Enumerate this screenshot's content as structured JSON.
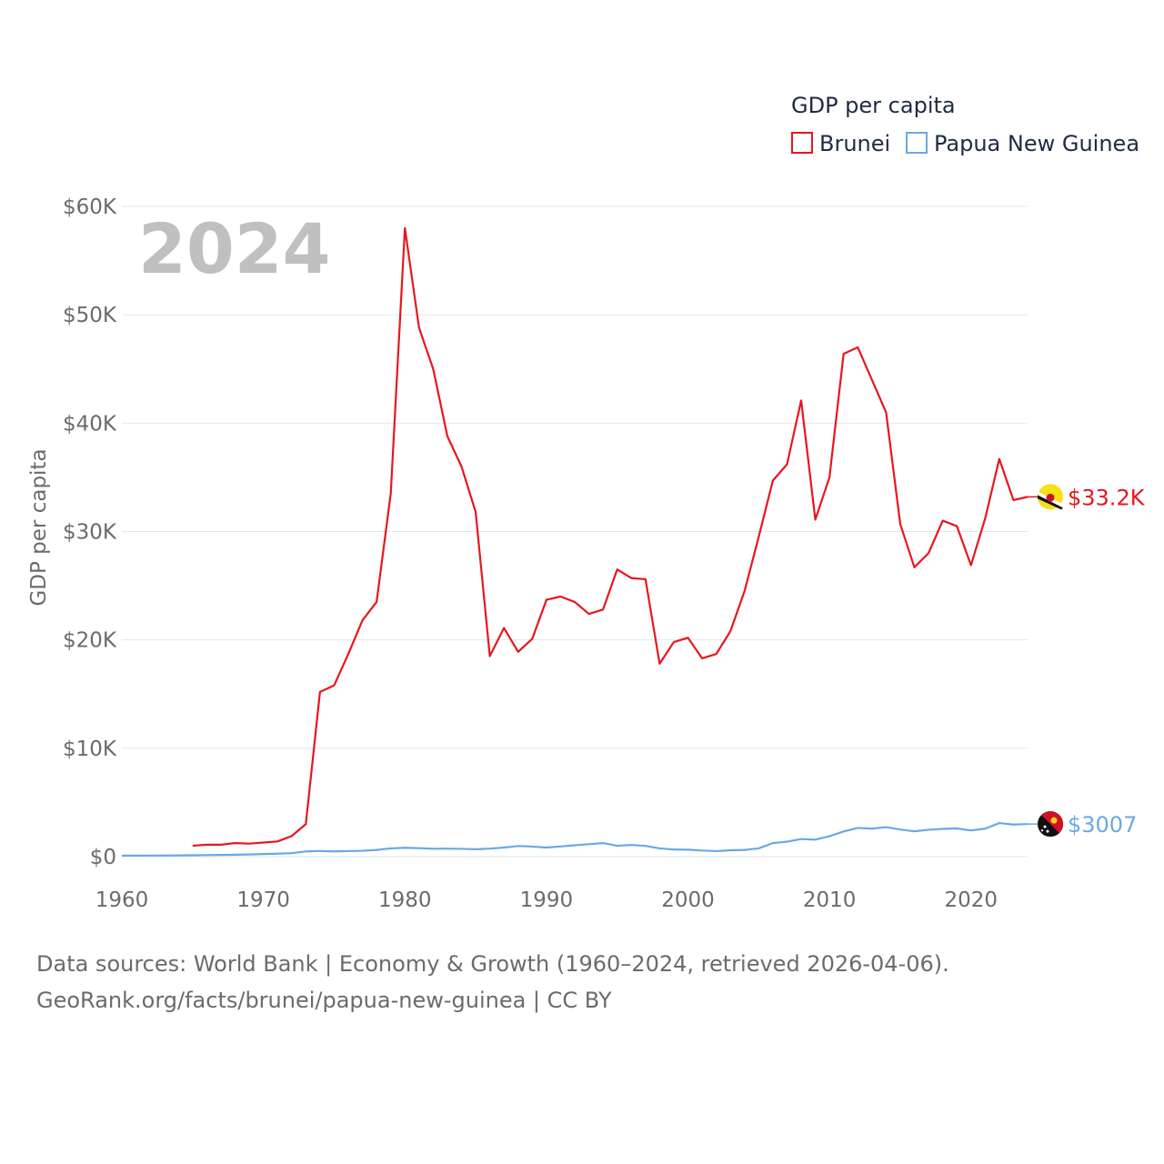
{
  "chart_data": {
    "type": "line",
    "year_label": "2024",
    "ylabel": "GDP per capita",
    "xlabel": "",
    "xlim": [
      1960,
      2024
    ],
    "ylim": [
      0,
      60000
    ],
    "y_ticks": [
      {
        "value": 0,
        "label": "$0"
      },
      {
        "value": 10000,
        "label": "$10K"
      },
      {
        "value": 20000,
        "label": "$20K"
      },
      {
        "value": 30000,
        "label": "$30K"
      },
      {
        "value": 40000,
        "label": "$40K"
      },
      {
        "value": 50000,
        "label": "$50K"
      },
      {
        "value": 60000,
        "label": "$60K"
      }
    ],
    "x_ticks": [
      {
        "value": 1960,
        "label": "1960"
      },
      {
        "value": 1970,
        "label": "1970"
      },
      {
        "value": 1980,
        "label": "1980"
      },
      {
        "value": 1990,
        "label": "1990"
      },
      {
        "value": 2000,
        "label": "2000"
      },
      {
        "value": 2010,
        "label": "2010"
      },
      {
        "value": 2020,
        "label": "2020"
      }
    ],
    "legend": {
      "title": "GDP per capita",
      "position": "top-right"
    },
    "series": [
      {
        "name": "Brunei",
        "color": "#e8161e",
        "end_label": "$33.2K",
        "flag_icon": "brunei-flag-icon",
        "points": [
          [
            1965,
            1000
          ],
          [
            1966,
            1100
          ],
          [
            1967,
            1100
          ],
          [
            1968,
            1250
          ],
          [
            1969,
            1200
          ],
          [
            1970,
            1300
          ],
          [
            1971,
            1400
          ],
          [
            1972,
            1900
          ],
          [
            1973,
            3000
          ],
          [
            1974,
            15200
          ],
          [
            1975,
            15800
          ],
          [
            1976,
            18700
          ],
          [
            1977,
            21800
          ],
          [
            1978,
            23500
          ],
          [
            1979,
            33500
          ],
          [
            1980,
            58000
          ],
          [
            1981,
            48800
          ],
          [
            1982,
            45000
          ],
          [
            1983,
            38800
          ],
          [
            1984,
            36000
          ],
          [
            1985,
            31800
          ],
          [
            1986,
            18500
          ],
          [
            1987,
            21100
          ],
          [
            1988,
            18900
          ],
          [
            1989,
            20100
          ],
          [
            1990,
            23700
          ],
          [
            1991,
            24000
          ],
          [
            1992,
            23500
          ],
          [
            1993,
            22400
          ],
          [
            1994,
            22800
          ],
          [
            1995,
            26500
          ],
          [
            1996,
            25700
          ],
          [
            1997,
            25600
          ],
          [
            1998,
            17800
          ],
          [
            1999,
            19800
          ],
          [
            2000,
            20200
          ],
          [
            2001,
            18300
          ],
          [
            2002,
            18700
          ],
          [
            2003,
            20800
          ],
          [
            2004,
            24500
          ],
          [
            2005,
            29500
          ],
          [
            2006,
            34700
          ],
          [
            2007,
            36200
          ],
          [
            2008,
            42100
          ],
          [
            2009,
            31100
          ],
          [
            2010,
            35000
          ],
          [
            2011,
            46400
          ],
          [
            2012,
            47000
          ],
          [
            2013,
            44000
          ],
          [
            2014,
            41000
          ],
          [
            2015,
            30700
          ],
          [
            2016,
            26700
          ],
          [
            2017,
            28000
          ],
          [
            2018,
            31000
          ],
          [
            2019,
            30500
          ],
          [
            2020,
            26900
          ],
          [
            2021,
            31200
          ],
          [
            2022,
            36700
          ],
          [
            2023,
            32900
          ],
          [
            2024,
            33200
          ]
        ]
      },
      {
        "name": "Papua New Guinea",
        "color": "#6aa9e3",
        "end_label": "$3007",
        "flag_icon": "papua-new-guinea-flag-icon",
        "points": [
          [
            1960,
            90
          ],
          [
            1961,
            95
          ],
          [
            1962,
            100
          ],
          [
            1963,
            105
          ],
          [
            1964,
            115
          ],
          [
            1965,
            125
          ],
          [
            1966,
            140
          ],
          [
            1967,
            155
          ],
          [
            1968,
            175
          ],
          [
            1969,
            200
          ],
          [
            1970,
            240
          ],
          [
            1971,
            275
          ],
          [
            1972,
            320
          ],
          [
            1973,
            480
          ],
          [
            1974,
            520
          ],
          [
            1975,
            480
          ],
          [
            1976,
            510
          ],
          [
            1977,
            540
          ],
          [
            1978,
            620
          ],
          [
            1979,
            760
          ],
          [
            1980,
            820
          ],
          [
            1981,
            780
          ],
          [
            1982,
            730
          ],
          [
            1983,
            740
          ],
          [
            1984,
            720
          ],
          [
            1985,
            680
          ],
          [
            1986,
            740
          ],
          [
            1987,
            840
          ],
          [
            1988,
            980
          ],
          [
            1989,
            930
          ],
          [
            1990,
            840
          ],
          [
            1991,
            940
          ],
          [
            1992,
            1050
          ],
          [
            1993,
            1150
          ],
          [
            1994,
            1250
          ],
          [
            1995,
            1000
          ],
          [
            1996,
            1080
          ],
          [
            1997,
            990
          ],
          [
            1998,
            760
          ],
          [
            1999,
            660
          ],
          [
            2000,
            640
          ],
          [
            2001,
            560
          ],
          [
            2002,
            510
          ],
          [
            2003,
            590
          ],
          [
            2004,
            620
          ],
          [
            2005,
            760
          ],
          [
            2006,
            1250
          ],
          [
            2007,
            1380
          ],
          [
            2008,
            1620
          ],
          [
            2009,
            1570
          ],
          [
            2010,
            1880
          ],
          [
            2011,
            2320
          ],
          [
            2012,
            2650
          ],
          [
            2013,
            2580
          ],
          [
            2014,
            2720
          ],
          [
            2015,
            2500
          ],
          [
            2016,
            2340
          ],
          [
            2017,
            2480
          ],
          [
            2018,
            2560
          ],
          [
            2019,
            2600
          ],
          [
            2020,
            2420
          ],
          [
            2021,
            2580
          ],
          [
            2022,
            3100
          ],
          [
            2023,
            2960
          ],
          [
            2024,
            3007
          ]
        ]
      }
    ]
  },
  "footer": {
    "line1": "Data sources: World Bank | Economy & Growth (1960–2024, retrieved 2026-04-06).",
    "line2": "GeoRank.org/facts/brunei/papua-new-guinea | CC BY"
  }
}
